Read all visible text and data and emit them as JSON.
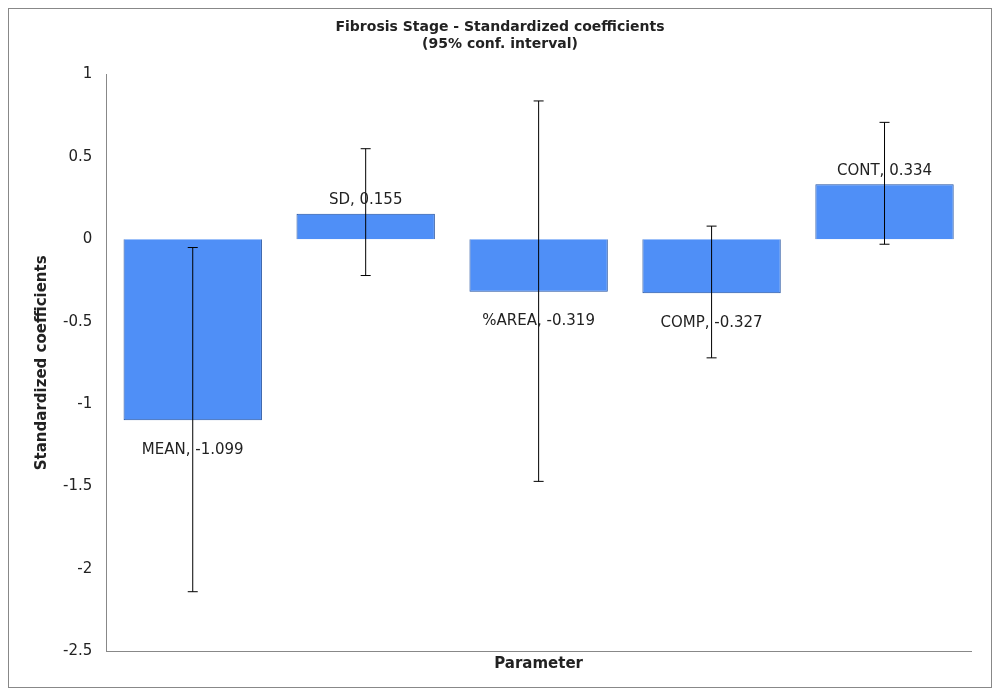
{
  "chart_data": {
    "type": "bar",
    "title": "Fibrosis Stage - Standardized coefficients",
    "subtitle": "(95% conf. interval)",
    "xlabel": "Parameter",
    "ylabel": "Standardized coefficients",
    "categories": [
      null,
      null,
      null,
      null,
      null
    ],
    "value_labels": [
      "MEAN, -1.099",
      "SD, 0.155",
      "%AREA, -0.319",
      "COMP, -0.327",
      "CONT, 0.334"
    ],
    "values": [
      -1.099,
      0.155,
      -0.319,
      -0.327,
      0.334
    ],
    "errors": [
      [
        -2.14,
        -0.05
      ],
      [
        -0.22,
        0.55
      ],
      [
        -1.47,
        0.84
      ],
      [
        -0.72,
        0.08
      ],
      [
        -0.03,
        0.71
      ]
    ],
    "color": "#4f8ff7",
    "ylim": [
      -2.5,
      1
    ],
    "yticks": [
      -2.5,
      -2,
      -1.5,
      -1,
      -0.5,
      0,
      0.5,
      1
    ],
    "grid": false,
    "legend": false,
    "tick_labels": "y"
  }
}
